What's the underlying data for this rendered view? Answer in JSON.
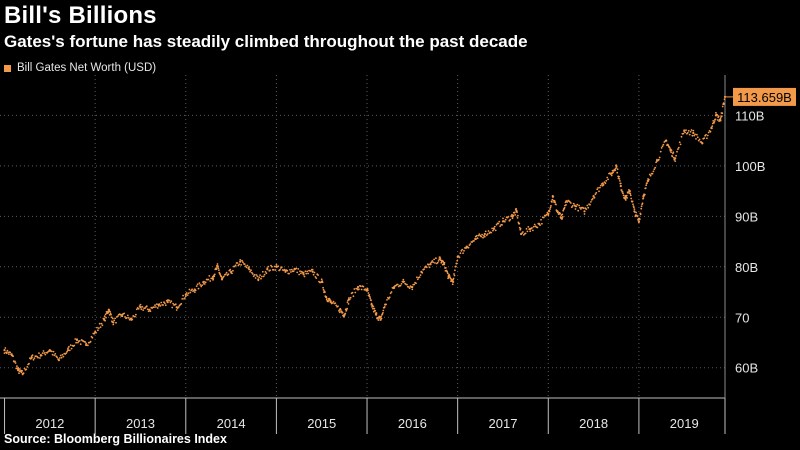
{
  "title": "Bill's Billions",
  "subtitle": "Gates's fortune has steadily climbed throughout the past decade",
  "source": "Source: Bloomberg Billionaires Index",
  "colors": {
    "background": "#000000",
    "series": "#f2994a",
    "grid": "#5a5a5a",
    "text": "#e6e6e6"
  },
  "chart_data": {
    "type": "scatter",
    "title": "Bill's Billions",
    "subtitle": "Gates's fortune has steadily climbed throughout the past decade",
    "xlabel": "",
    "ylabel": "",
    "x_categories": [
      "2012",
      "2013",
      "2014",
      "2015",
      "2016",
      "2017",
      "2018",
      "2019"
    ],
    "xlim": [
      2011.95,
      2019.95
    ],
    "ylim": [
      54,
      118
    ],
    "y_ticks": [
      {
        "value": 60,
        "label": "60B"
      },
      {
        "value": 70,
        "label": "70"
      },
      {
        "value": 80,
        "label": "80B"
      },
      {
        "value": 90,
        "label": "90B"
      },
      {
        "value": 100,
        "label": "100B"
      },
      {
        "value": 110,
        "label": "110B"
      }
    ],
    "y_axis_position": "right",
    "grid": "dotted",
    "legend_position": "top-left",
    "series": [
      {
        "name": "Bill Gates Net Worth (USD)",
        "color": "#f2994a",
        "points": [
          [
            2012.0,
            63.5
          ],
          [
            2012.08,
            62.5
          ],
          [
            2012.15,
            59.5
          ],
          [
            2012.2,
            58.8
          ],
          [
            2012.3,
            62.0
          ],
          [
            2012.4,
            62.5
          ],
          [
            2012.5,
            63.5
          ],
          [
            2012.6,
            61.5
          ],
          [
            2012.7,
            63.5
          ],
          [
            2012.8,
            65.5
          ],
          [
            2012.9,
            64.5
          ],
          [
            2013.0,
            67.0
          ],
          [
            2013.1,
            69.5
          ],
          [
            2013.15,
            71.5
          ],
          [
            2013.2,
            69.0
          ],
          [
            2013.3,
            70.5
          ],
          [
            2013.4,
            69.5
          ],
          [
            2013.5,
            72.0
          ],
          [
            2013.6,
            71.5
          ],
          [
            2013.7,
            72.5
          ],
          [
            2013.8,
            73.0
          ],
          [
            2013.9,
            72.0
          ],
          [
            2014.0,
            74.5
          ],
          [
            2014.1,
            75.5
          ],
          [
            2014.2,
            77.0
          ],
          [
            2014.3,
            78.0
          ],
          [
            2014.35,
            80.0
          ],
          [
            2014.4,
            77.5
          ],
          [
            2014.5,
            79.0
          ],
          [
            2014.6,
            81.0
          ],
          [
            2014.7,
            79.5
          ],
          [
            2014.8,
            77.5
          ],
          [
            2014.9,
            79.5
          ],
          [
            2015.0,
            80.0
          ],
          [
            2015.1,
            79.0
          ],
          [
            2015.2,
            79.5
          ],
          [
            2015.3,
            78.5
          ],
          [
            2015.4,
            79.0
          ],
          [
            2015.5,
            77.0
          ],
          [
            2015.55,
            74.0
          ],
          [
            2015.6,
            73.0
          ],
          [
            2015.7,
            71.5
          ],
          [
            2015.75,
            70.5
          ],
          [
            2015.8,
            73.5
          ],
          [
            2015.9,
            76.0
          ],
          [
            2016.0,
            75.5
          ],
          [
            2016.05,
            72.5
          ],
          [
            2016.1,
            70.5
          ],
          [
            2016.15,
            69.5
          ],
          [
            2016.2,
            72.5
          ],
          [
            2016.3,
            76.0
          ],
          [
            2016.4,
            77.0
          ],
          [
            2016.5,
            76.0
          ],
          [
            2016.6,
            79.0
          ],
          [
            2016.7,
            80.5
          ],
          [
            2016.8,
            81.5
          ],
          [
            2016.85,
            80.5
          ],
          [
            2016.9,
            78.0
          ],
          [
            2016.95,
            77.0
          ],
          [
            2017.0,
            82.0
          ],
          [
            2017.1,
            84.0
          ],
          [
            2017.2,
            85.5
          ],
          [
            2017.3,
            86.5
          ],
          [
            2017.4,
            87.5
          ],
          [
            2017.5,
            89.0
          ],
          [
            2017.6,
            90.0
          ],
          [
            2017.65,
            91.0
          ],
          [
            2017.7,
            86.5
          ],
          [
            2017.8,
            87.5
          ],
          [
            2017.9,
            88.5
          ],
          [
            2018.0,
            90.5
          ],
          [
            2018.05,
            94.0
          ],
          [
            2018.1,
            91.0
          ],
          [
            2018.15,
            89.5
          ],
          [
            2018.2,
            93.0
          ],
          [
            2018.3,
            92.0
          ],
          [
            2018.4,
            91.0
          ],
          [
            2018.5,
            94.0
          ],
          [
            2018.6,
            96.5
          ],
          [
            2018.7,
            98.5
          ],
          [
            2018.75,
            100.0
          ],
          [
            2018.8,
            96.0
          ],
          [
            2018.85,
            93.5
          ],
          [
            2018.9,
            95.0
          ],
          [
            2018.95,
            91.0
          ],
          [
            2019.0,
            89.0
          ],
          [
            2019.05,
            94.0
          ],
          [
            2019.1,
            97.0
          ],
          [
            2019.2,
            101.0
          ],
          [
            2019.3,
            105.0
          ],
          [
            2019.35,
            103.0
          ],
          [
            2019.4,
            101.5
          ],
          [
            2019.5,
            107.0
          ],
          [
            2019.6,
            106.5
          ],
          [
            2019.7,
            104.5
          ],
          [
            2019.8,
            107.5
          ],
          [
            2019.85,
            110.0
          ],
          [
            2019.9,
            109.0
          ],
          [
            2019.95,
            113.659
          ]
        ]
      }
    ],
    "annotations": [
      {
        "label": "113.659B",
        "x": 2019.95,
        "y": 113.659
      }
    ]
  }
}
